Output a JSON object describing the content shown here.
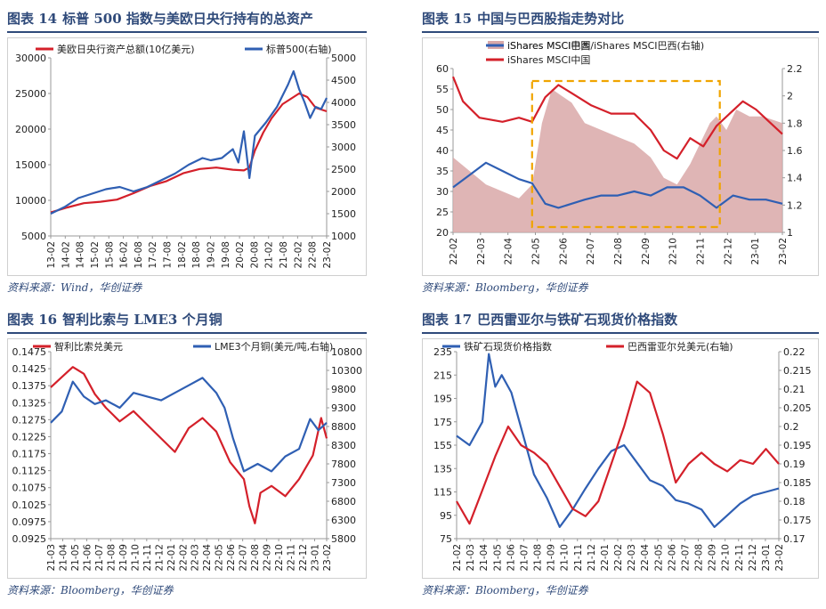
{
  "panels": [
    {
      "id": "p14",
      "title_num": "图表 14",
      "title_text": "标普 500 指数与美欧日央行持有的总资产",
      "source": "资料来源：Wind，华创证券",
      "chart_data": {
        "type": "line",
        "title": "标普500指数与美欧日央行持有的总资产",
        "categories": [
          "13-02",
          "14-02",
          "14-08",
          "15-02",
          "15-08",
          "16-02",
          "16-08",
          "17-02",
          "17-08",
          "18-02",
          "18-08",
          "19-02",
          "19-08",
          "20-02",
          "20-08",
          "21-02",
          "21-08",
          "22-02",
          "22-08",
          "23-02"
        ],
        "left_axis": {
          "ylim": [
            5000,
            30000
          ],
          "ticks": [
            5000,
            10000,
            15000,
            20000,
            25000,
            30000
          ]
        },
        "right_axis": {
          "ylim": [
            1000,
            5000
          ],
          "ticks": [
            1000,
            1500,
            2000,
            2500,
            3000,
            3500,
            4000,
            4500,
            5000
          ]
        },
        "series": [
          {
            "name": "美欧日央行资产总额(10亿美元)",
            "axis": "left",
            "color": "#d4202a",
            "x": [
              0,
              0.06,
              0.12,
              0.18,
              0.24,
              0.3,
              0.36,
              0.42,
              0.48,
              0.54,
              0.6,
              0.66,
              0.7,
              0.72,
              0.74,
              0.77,
              0.8,
              0.84,
              0.88,
              0.9,
              0.93,
              0.96,
              1
            ],
            "values": [
              8300,
              9000,
              9600,
              9800,
              10100,
              11000,
              12000,
              12700,
              13800,
              14400,
              14600,
              14300,
              14200,
              14600,
              17000,
              19500,
              21500,
              23500,
              24500,
              25000,
              24500,
              23000,
              22500
            ]
          },
          {
            "name": "标普500(右轴)",
            "axis": "right",
            "color": "#2f5fb3",
            "x": [
              0,
              0.05,
              0.1,
              0.15,
              0.2,
              0.25,
              0.3,
              0.35,
              0.4,
              0.45,
              0.5,
              0.55,
              0.58,
              0.62,
              0.66,
              0.68,
              0.7,
              0.72,
              0.74,
              0.78,
              0.82,
              0.86,
              0.88,
              0.9,
              0.92,
              0.94,
              0.96,
              0.98,
              1
            ],
            "values": [
              1500,
              1650,
              1850,
              1950,
              2050,
              2100,
              2000,
              2100,
              2250,
              2400,
              2600,
              2750,
              2700,
              2750,
              2950,
              2650,
              3350,
              2300,
              3250,
              3550,
              3900,
              4400,
              4700,
              4300,
              4000,
              3650,
              3900,
              3850,
              4100
            ]
          }
        ]
      }
    },
    {
      "id": "p15",
      "title_num": "图表 15",
      "title_text": "中国与巴西股指走势对比",
      "source": "资料来源：Bloomberg，华创证券",
      "chart_data": {
        "type": "area",
        "title": "中国与巴西股指走势对比",
        "categories": [
          "22-02",
          "22-03",
          "22-04",
          "22-05",
          "22-06",
          "22-07",
          "22-08",
          "22-09",
          "22-10",
          "22-11",
          "22-12",
          "23-01",
          "23-02"
        ],
        "left_axis": {
          "ylim": [
            20,
            60
          ],
          "ticks": [
            20,
            25,
            30,
            35,
            40,
            45,
            50,
            55,
            60
          ]
        },
        "right_axis": {
          "ylim": [
            1,
            2.2
          ],
          "ticks": [
            1,
            1.2,
            1.4,
            1.6,
            1.8,
            2,
            2.2
          ]
        },
        "highlight_box": {
          "x_from": 0.24,
          "x_to": 0.81
        },
        "series": [
          {
            "name": "iShares MSCI中国/iShares MSCI巴西(右轴)",
            "axis": "right",
            "kind": "area",
            "color": "#d9a8a8",
            "x": [
              0,
              0.05,
              0.1,
              0.15,
              0.2,
              0.24,
              0.27,
              0.3,
              0.33,
              0.36,
              0.4,
              0.45,
              0.5,
              0.55,
              0.6,
              0.64,
              0.68,
              0.72,
              0.75,
              0.78,
              0.8,
              0.83,
              0.86,
              0.9,
              0.94,
              1
            ],
            "values": [
              1.55,
              1.45,
              1.35,
              1.3,
              1.25,
              1.35,
              1.8,
              2.05,
              2.0,
              1.95,
              1.8,
              1.75,
              1.7,
              1.65,
              1.55,
              1.4,
              1.35,
              1.5,
              1.65,
              1.8,
              1.85,
              1.75,
              1.9,
              1.85,
              1.85,
              1.8
            ]
          },
          {
            "name": "iShares MSCI中国",
            "axis": "left",
            "kind": "line",
            "color": "#d4202a",
            "x": [
              0,
              0.03,
              0.08,
              0.15,
              0.2,
              0.24,
              0.28,
              0.32,
              0.36,
              0.42,
              0.48,
              0.55,
              0.6,
              0.64,
              0.68,
              0.72,
              0.76,
              0.8,
              0.84,
              0.88,
              0.92,
              0.96,
              1
            ],
            "values": [
              58,
              52,
              48,
              47,
              48,
              47,
              53,
              56,
              54,
              51,
              49,
              49,
              45,
              40,
              38,
              43,
              41,
              46,
              49,
              52,
              50,
              47,
              44
            ]
          },
          {
            "name": "iShares MSCI巴西",
            "axis": "left",
            "kind": "line",
            "color": "#2f5fb3",
            "x": [
              0,
              0.05,
              0.1,
              0.15,
              0.2,
              0.24,
              0.28,
              0.32,
              0.36,
              0.4,
              0.45,
              0.5,
              0.55,
              0.6,
              0.65,
              0.7,
              0.75,
              0.8,
              0.85,
              0.9,
              0.95,
              1
            ],
            "values": [
              31,
              34,
              37,
              35,
              33,
              32,
              27,
              26,
              27,
              28,
              29,
              29,
              30,
              29,
              31,
              31,
              29,
              26,
              29,
              28,
              28,
              27
            ]
          }
        ]
      }
    },
    {
      "id": "p16",
      "title_num": "图表 16",
      "title_text": "智利比索与 LME3 个月铜",
      "source": "资料来源：Bloomberg，华创证券",
      "chart_data": {
        "type": "line",
        "title": "智利比索与LME3个月铜",
        "categories": [
          "21-03",
          "21-04",
          "21-05",
          "21-06",
          "21-07",
          "21-08",
          "21-09",
          "21-10",
          "21-11",
          "21-12",
          "22-01",
          "22-02",
          "22-03",
          "22-04",
          "22-05",
          "22-06",
          "22-07",
          "22-08",
          "22-09",
          "22-10",
          "22-11",
          "22-12",
          "23-01",
          "23-02"
        ],
        "left_axis": {
          "ylim": [
            0.0925,
            0.1475
          ],
          "ticks": [
            0.0925,
            0.0975,
            0.1025,
            0.1075,
            0.1125,
            0.1175,
            0.1225,
            0.1275,
            0.1325,
            0.1375,
            0.1425,
            0.1475
          ]
        },
        "right_axis": {
          "ylim": [
            5800,
            10800
          ],
          "ticks": [
            5800,
            6300,
            6800,
            7300,
            7800,
            8300,
            8800,
            9300,
            9800,
            10300,
            10800
          ]
        },
        "series": [
          {
            "name": "智利比索兑美元",
            "axis": "left",
            "color": "#d4202a",
            "x": [
              0,
              0.04,
              0.08,
              0.12,
              0.16,
              0.2,
              0.25,
              0.3,
              0.35,
              0.4,
              0.45,
              0.5,
              0.55,
              0.6,
              0.65,
              0.7,
              0.72,
              0.74,
              0.76,
              0.8,
              0.85,
              0.9,
              0.95,
              0.98,
              1
            ],
            "values": [
              0.137,
              0.14,
              0.143,
              0.141,
              0.135,
              0.131,
              0.127,
              0.13,
              0.126,
              0.122,
              0.118,
              0.125,
              0.128,
              0.124,
              0.115,
              0.11,
              0.102,
              0.097,
              0.106,
              0.108,
              0.105,
              0.11,
              0.117,
              0.128,
              0.122
            ]
          },
          {
            "name": "LME3个月铜(美元/吨,右轴)",
            "axis": "right",
            "color": "#2f5fb3",
            "x": [
              0,
              0.04,
              0.08,
              0.12,
              0.16,
              0.2,
              0.25,
              0.3,
              0.35,
              0.4,
              0.45,
              0.5,
              0.55,
              0.6,
              0.63,
              0.66,
              0.7,
              0.75,
              0.8,
              0.85,
              0.9,
              0.94,
              0.97,
              1
            ],
            "values": [
              8900,
              9200,
              10000,
              9600,
              9400,
              9500,
              9300,
              9700,
              9600,
              9500,
              9700,
              9900,
              10100,
              9700,
              9300,
              8500,
              7600,
              7800,
              7600,
              8000,
              8200,
              9000,
              8700,
              8900
            ]
          }
        ]
      }
    },
    {
      "id": "p17",
      "title_num": "图表 17",
      "title_text": "巴西雷亚尔与铁矿石现货价格指数",
      "source": "资料来源：Bloomberg，华创证券",
      "chart_data": {
        "type": "line",
        "title": "巴西雷亚尔与铁矿石现货价格指数",
        "categories": [
          "21-02",
          "21-03",
          "21-04",
          "21-05",
          "21-06",
          "21-07",
          "21-08",
          "21-09",
          "21-10",
          "21-11",
          "21-12",
          "22-01",
          "22-02",
          "22-03",
          "22-04",
          "22-05",
          "22-06",
          "22-07",
          "22-08",
          "22-09",
          "22-10",
          "22-11",
          "22-12",
          "23-01",
          "23-02"
        ],
        "left_axis": {
          "ylim": [
            75,
            235
          ],
          "ticks": [
            75,
            95,
            115,
            135,
            155,
            175,
            195,
            215,
            235
          ]
        },
        "right_axis": {
          "ylim": [
            0.17,
            0.22
          ],
          "ticks": [
            0.17,
            0.175,
            0.18,
            0.185,
            0.19,
            0.195,
            0.2,
            0.205,
            0.21,
            0.215,
            0.22
          ]
        },
        "series": [
          {
            "name": "铁矿石现货价格指数",
            "axis": "left",
            "color": "#2f5fb3",
            "x": [
              0,
              0.04,
              0.08,
              0.1,
              0.12,
              0.14,
              0.17,
              0.2,
              0.24,
              0.28,
              0.32,
              0.36,
              0.4,
              0.44,
              0.48,
              0.52,
              0.56,
              0.6,
              0.64,
              0.68,
              0.72,
              0.76,
              0.8,
              0.84,
              0.88,
              0.92,
              0.96,
              1
            ],
            "values": [
              163,
              155,
              175,
              233,
              205,
              215,
              200,
              170,
              130,
              110,
              85,
              100,
              118,
              135,
              150,
              155,
              140,
              125,
              120,
              108,
              105,
              100,
              85,
              95,
              105,
              112,
              115,
              118
            ]
          },
          {
            "name": "巴西雷亚尔兑美元(右轴)",
            "axis": "right",
            "color": "#d4202a",
            "x": [
              0,
              0.04,
              0.08,
              0.12,
              0.16,
              0.2,
              0.24,
              0.28,
              0.32,
              0.36,
              0.4,
              0.44,
              0.48,
              0.52,
              0.56,
              0.6,
              0.64,
              0.68,
              0.72,
              0.76,
              0.8,
              0.84,
              0.88,
              0.92,
              0.96,
              1
            ],
            "values": [
              0.18,
              0.174,
              0.183,
              0.192,
              0.2,
              0.195,
              0.193,
              0.19,
              0.184,
              0.178,
              0.176,
              0.18,
              0.19,
              0.2,
              0.212,
              0.209,
              0.198,
              0.185,
              0.19,
              0.193,
              0.19,
              0.188,
              0.191,
              0.19,
              0.194,
              0.19
            ]
          }
        ]
      }
    }
  ]
}
